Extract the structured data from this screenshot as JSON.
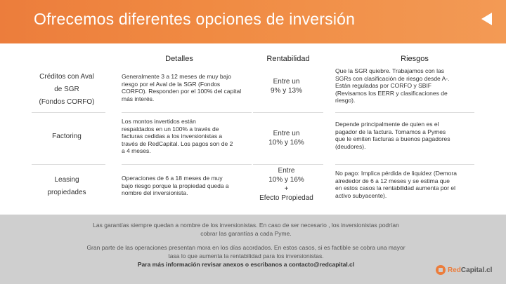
{
  "header": {
    "title": "Ofrecemos diferentes opciones de inversión",
    "back_icon": "triangle-left-icon"
  },
  "table": {
    "columns": [
      "Detalles",
      "Rentabilidad",
      "Riesgos"
    ],
    "rows": [
      {
        "name": [
          "Créditos con Aval",
          "de SGR",
          "(Fondos CORFO)"
        ],
        "detail": [
          "Generalmente 3 a 12 meses de muy bajo",
          "riesgo por el Aval de la SGR (Fondos",
          "CORFO). Responden por el 100% del capital",
          "más interés."
        ],
        "rent": [
          "Entre un",
          "9% y 13%"
        ],
        "risk": [
          "Que la SGR quiebre. Trabajamos con las",
          "SGRs con clasificación de riesgo desde A-.",
          "Están reguladas por CORFO y SBIF",
          "(Revisamos los EERR y clasificaciones de",
          "riesgo)."
        ]
      },
      {
        "name": [
          "Factoring"
        ],
        "detail": [
          "Los montos invertidos están",
          "respaldados en un 100% a través de",
          "facturas cedidas a los inversionistas a",
          "través de RedCapital. Los pagos son de 2",
          "a 4 meses."
        ],
        "rent": [
          "Entre un",
          "10% y 16%"
        ],
        "risk": [
          "Depende principalmente de quien es el",
          "pagador de la factura. Tomamos a Pymes",
          "que le emiten facturas a buenos pagadores",
          "(deudores)."
        ]
      },
      {
        "name": [
          "Leasing",
          "propiedades"
        ],
        "detail": [
          "Operaciones de 6 a 18 meses de muy",
          "bajo riesgo porque la propiedad queda a",
          "nombre del inversionista."
        ],
        "rent": [
          "Entre",
          "10% y 16%",
          "+",
          "Efecto Propiedad"
        ],
        "risk": [
          "No pago: Implica pérdida de liquidez (Demora",
          "alrededor de 6 a 12 meses y se estima que",
          "en estos casos la rentabilidad aumenta por el",
          "activo subyacente)."
        ]
      }
    ]
  },
  "footer": {
    "lines": [
      "Las garantías siempre quedan a nombre de los inversionistas. En caso de ser necesario , los inversionistas podrían",
      "cobrar las garantías a cada Pyme.",
      "Gran parte de las operaciones presentan mora en los días acordados. En estos casos, si es factible se cobra una mayor",
      "tasa lo que aumenta la rentabilidad para los inversionistas.",
      "Para más información revisar anexos o escribanos a contacto@redcapital.cl"
    ],
    "logo_red": "Red",
    "logo_rest": "Capital.cl"
  },
  "colors": {
    "header": "#ec7d3c",
    "footer_bg": "#cfcfcf"
  }
}
